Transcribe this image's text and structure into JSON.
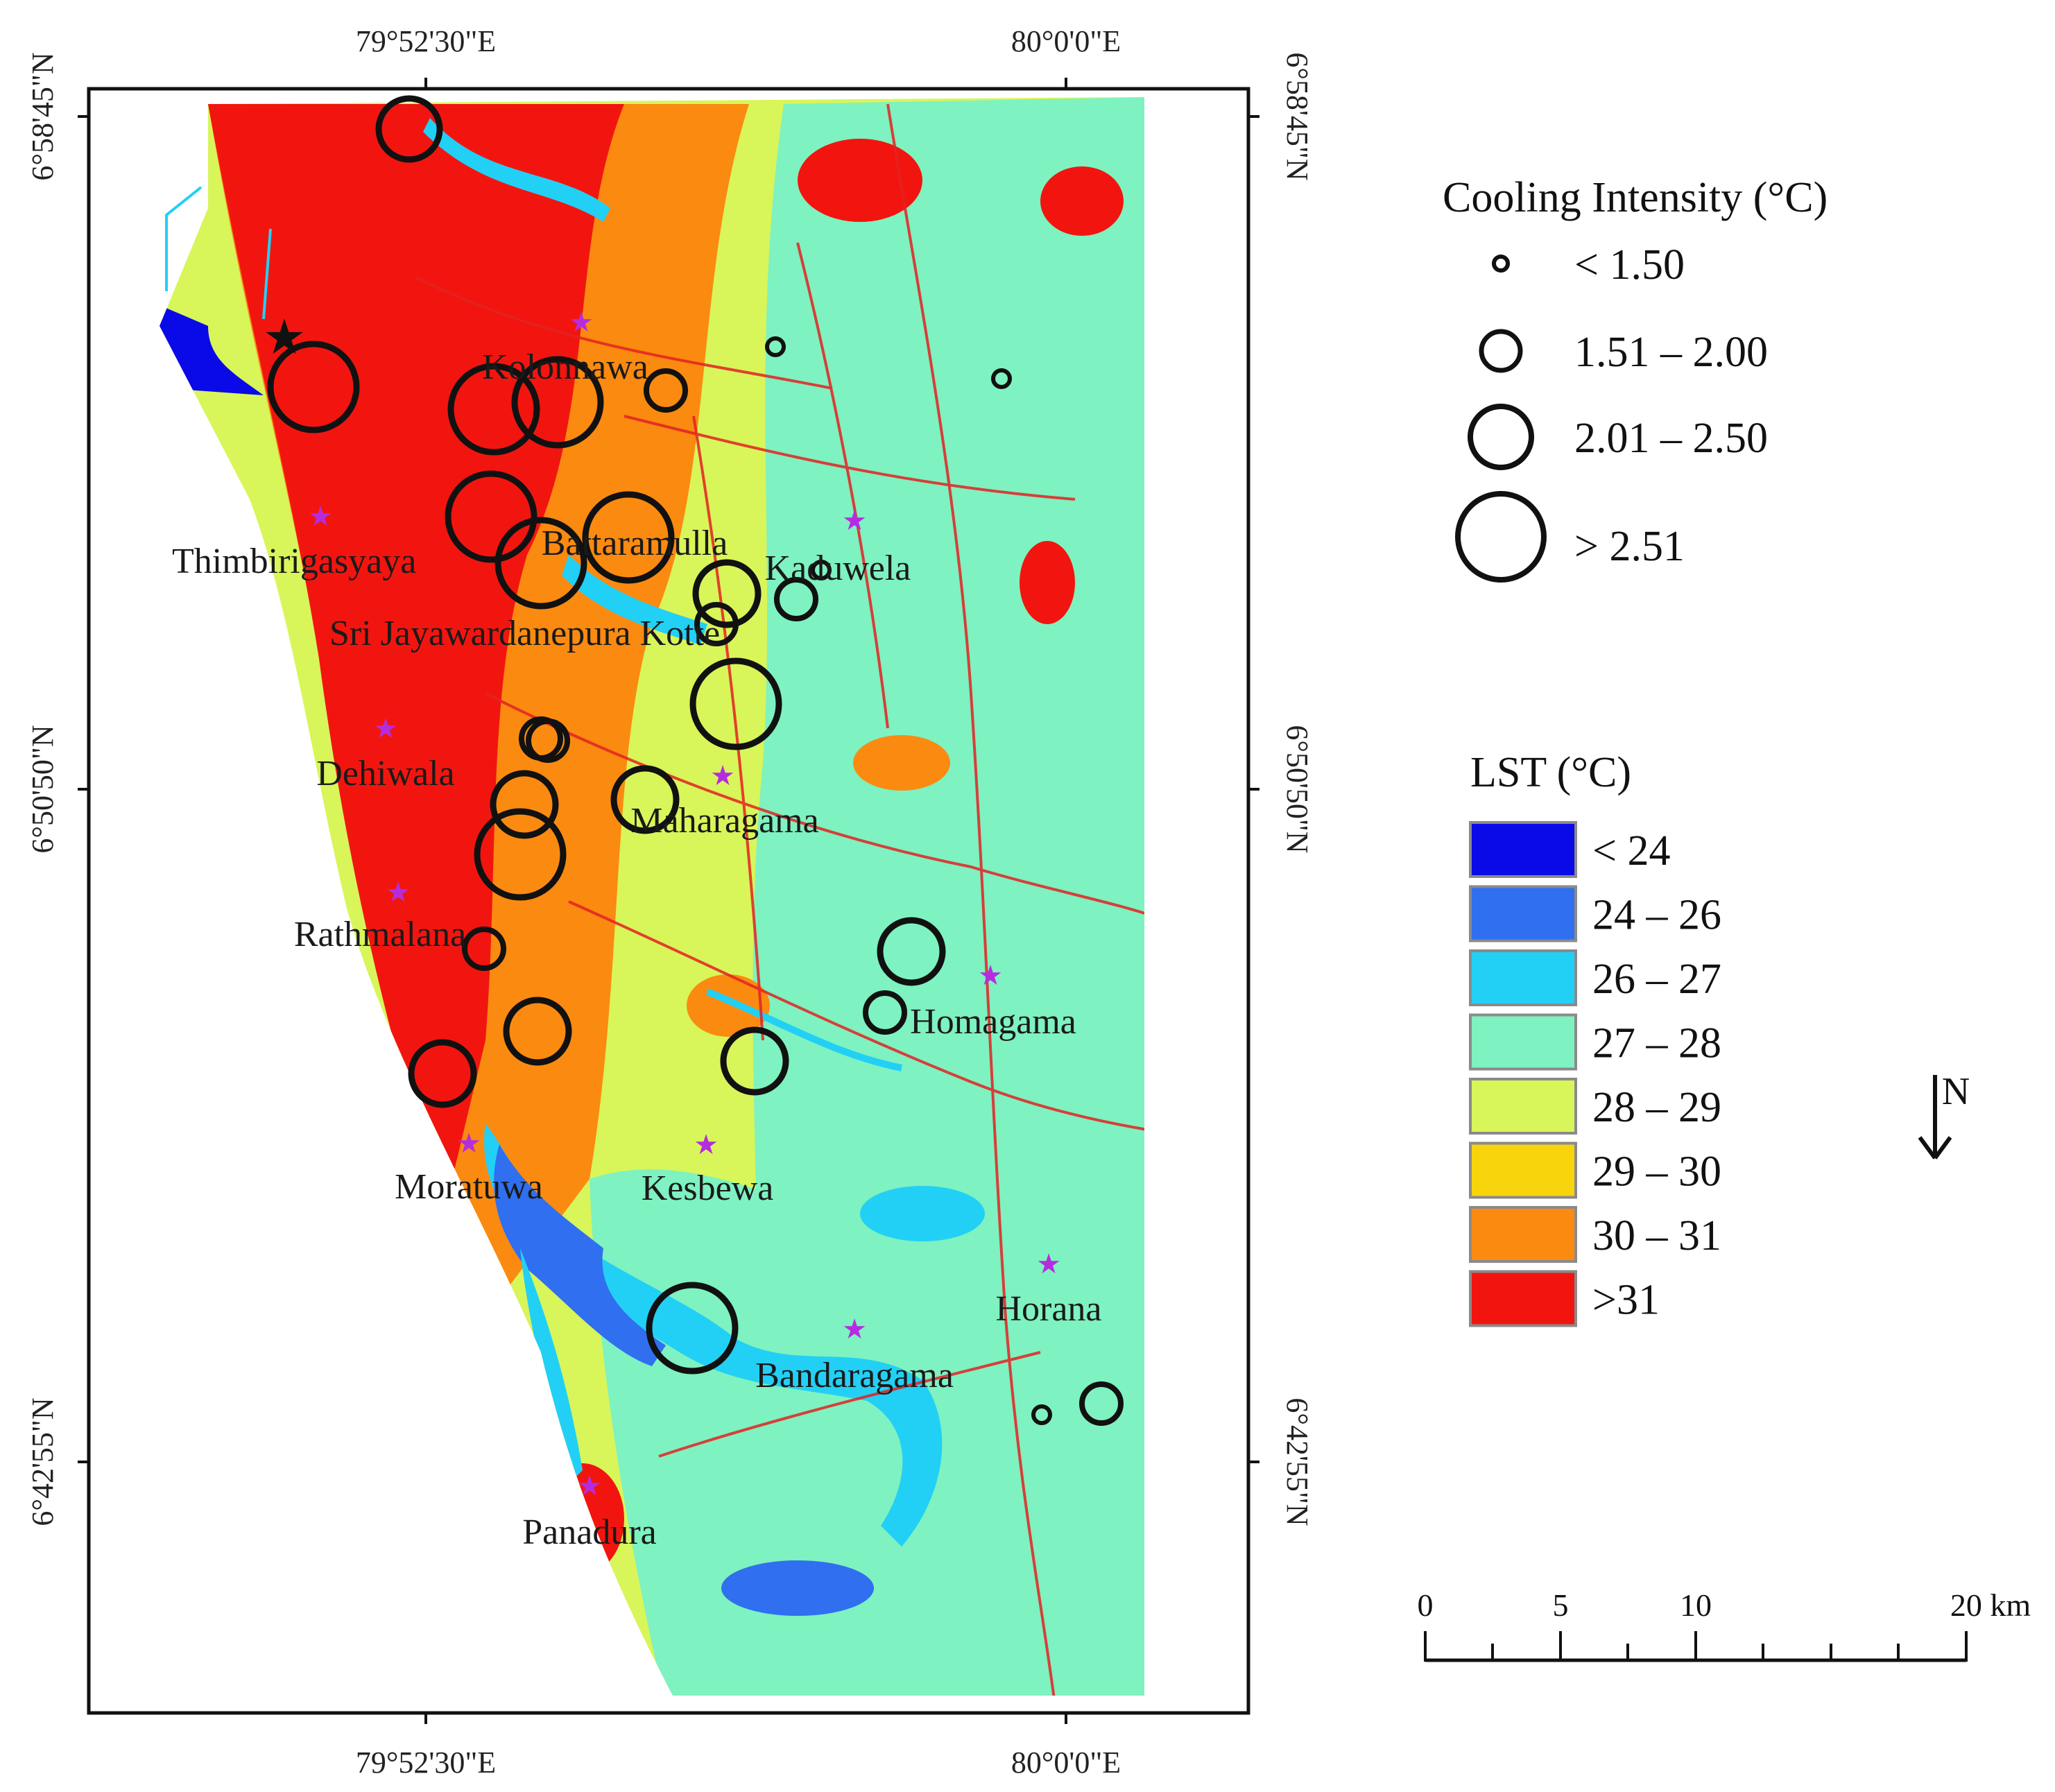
{
  "axes": {
    "top": [
      "79°52'30\"E",
      "80°0'0\"E"
    ],
    "bottom": [
      "79°52'30\"E",
      "80°0'0\"E"
    ],
    "left": [
      "6°58'45\"N",
      "6°50'50\"N",
      "6°42'55\"N"
    ],
    "right": [
      "6°58'45\"N",
      "6°50'50\"N",
      "6°42'55\"N"
    ]
  },
  "places": [
    "Kolonnawa",
    "Thimbirigasyaya",
    "Battaramulla",
    "Kaduwela",
    "Sri Jayawardanepura Kotte",
    "Dehiwala",
    "Maharagama",
    "Rathmalana",
    "Homagama",
    "Moratuwa",
    "Kesbewa",
    "Horana",
    "Bandaragama",
    "Panadura"
  ],
  "cooling_legend": {
    "title": "Cooling Intensity (°C)",
    "items": [
      "< 1.50",
      "1.51 – 2.00",
      "2.01 – 2.50",
      "> 2.51"
    ]
  },
  "lst_legend": {
    "title": "LST (°C)",
    "items": [
      {
        "label": "< 24",
        "color": "#0a0ae8"
      },
      {
        "label": "24 – 26",
        "color": "#2f6ff0"
      },
      {
        "label": "26 – 27",
        "color": "#22d0f5"
      },
      {
        "label": "27 – 28",
        "color": "#7ef2c0"
      },
      {
        "label": "28 – 29",
        "color": "#d8f55a"
      },
      {
        "label": "29 – 30",
        "color": "#f8d40c"
      },
      {
        "label": "30 – 31",
        "color": "#fb8a10"
      },
      {
        "label": ">31",
        "color": "#f2150f"
      }
    ]
  },
  "scale_bar": {
    "ticks": [
      "0",
      "5",
      "10",
      "20 km"
    ]
  },
  "north_arrow": "N"
}
